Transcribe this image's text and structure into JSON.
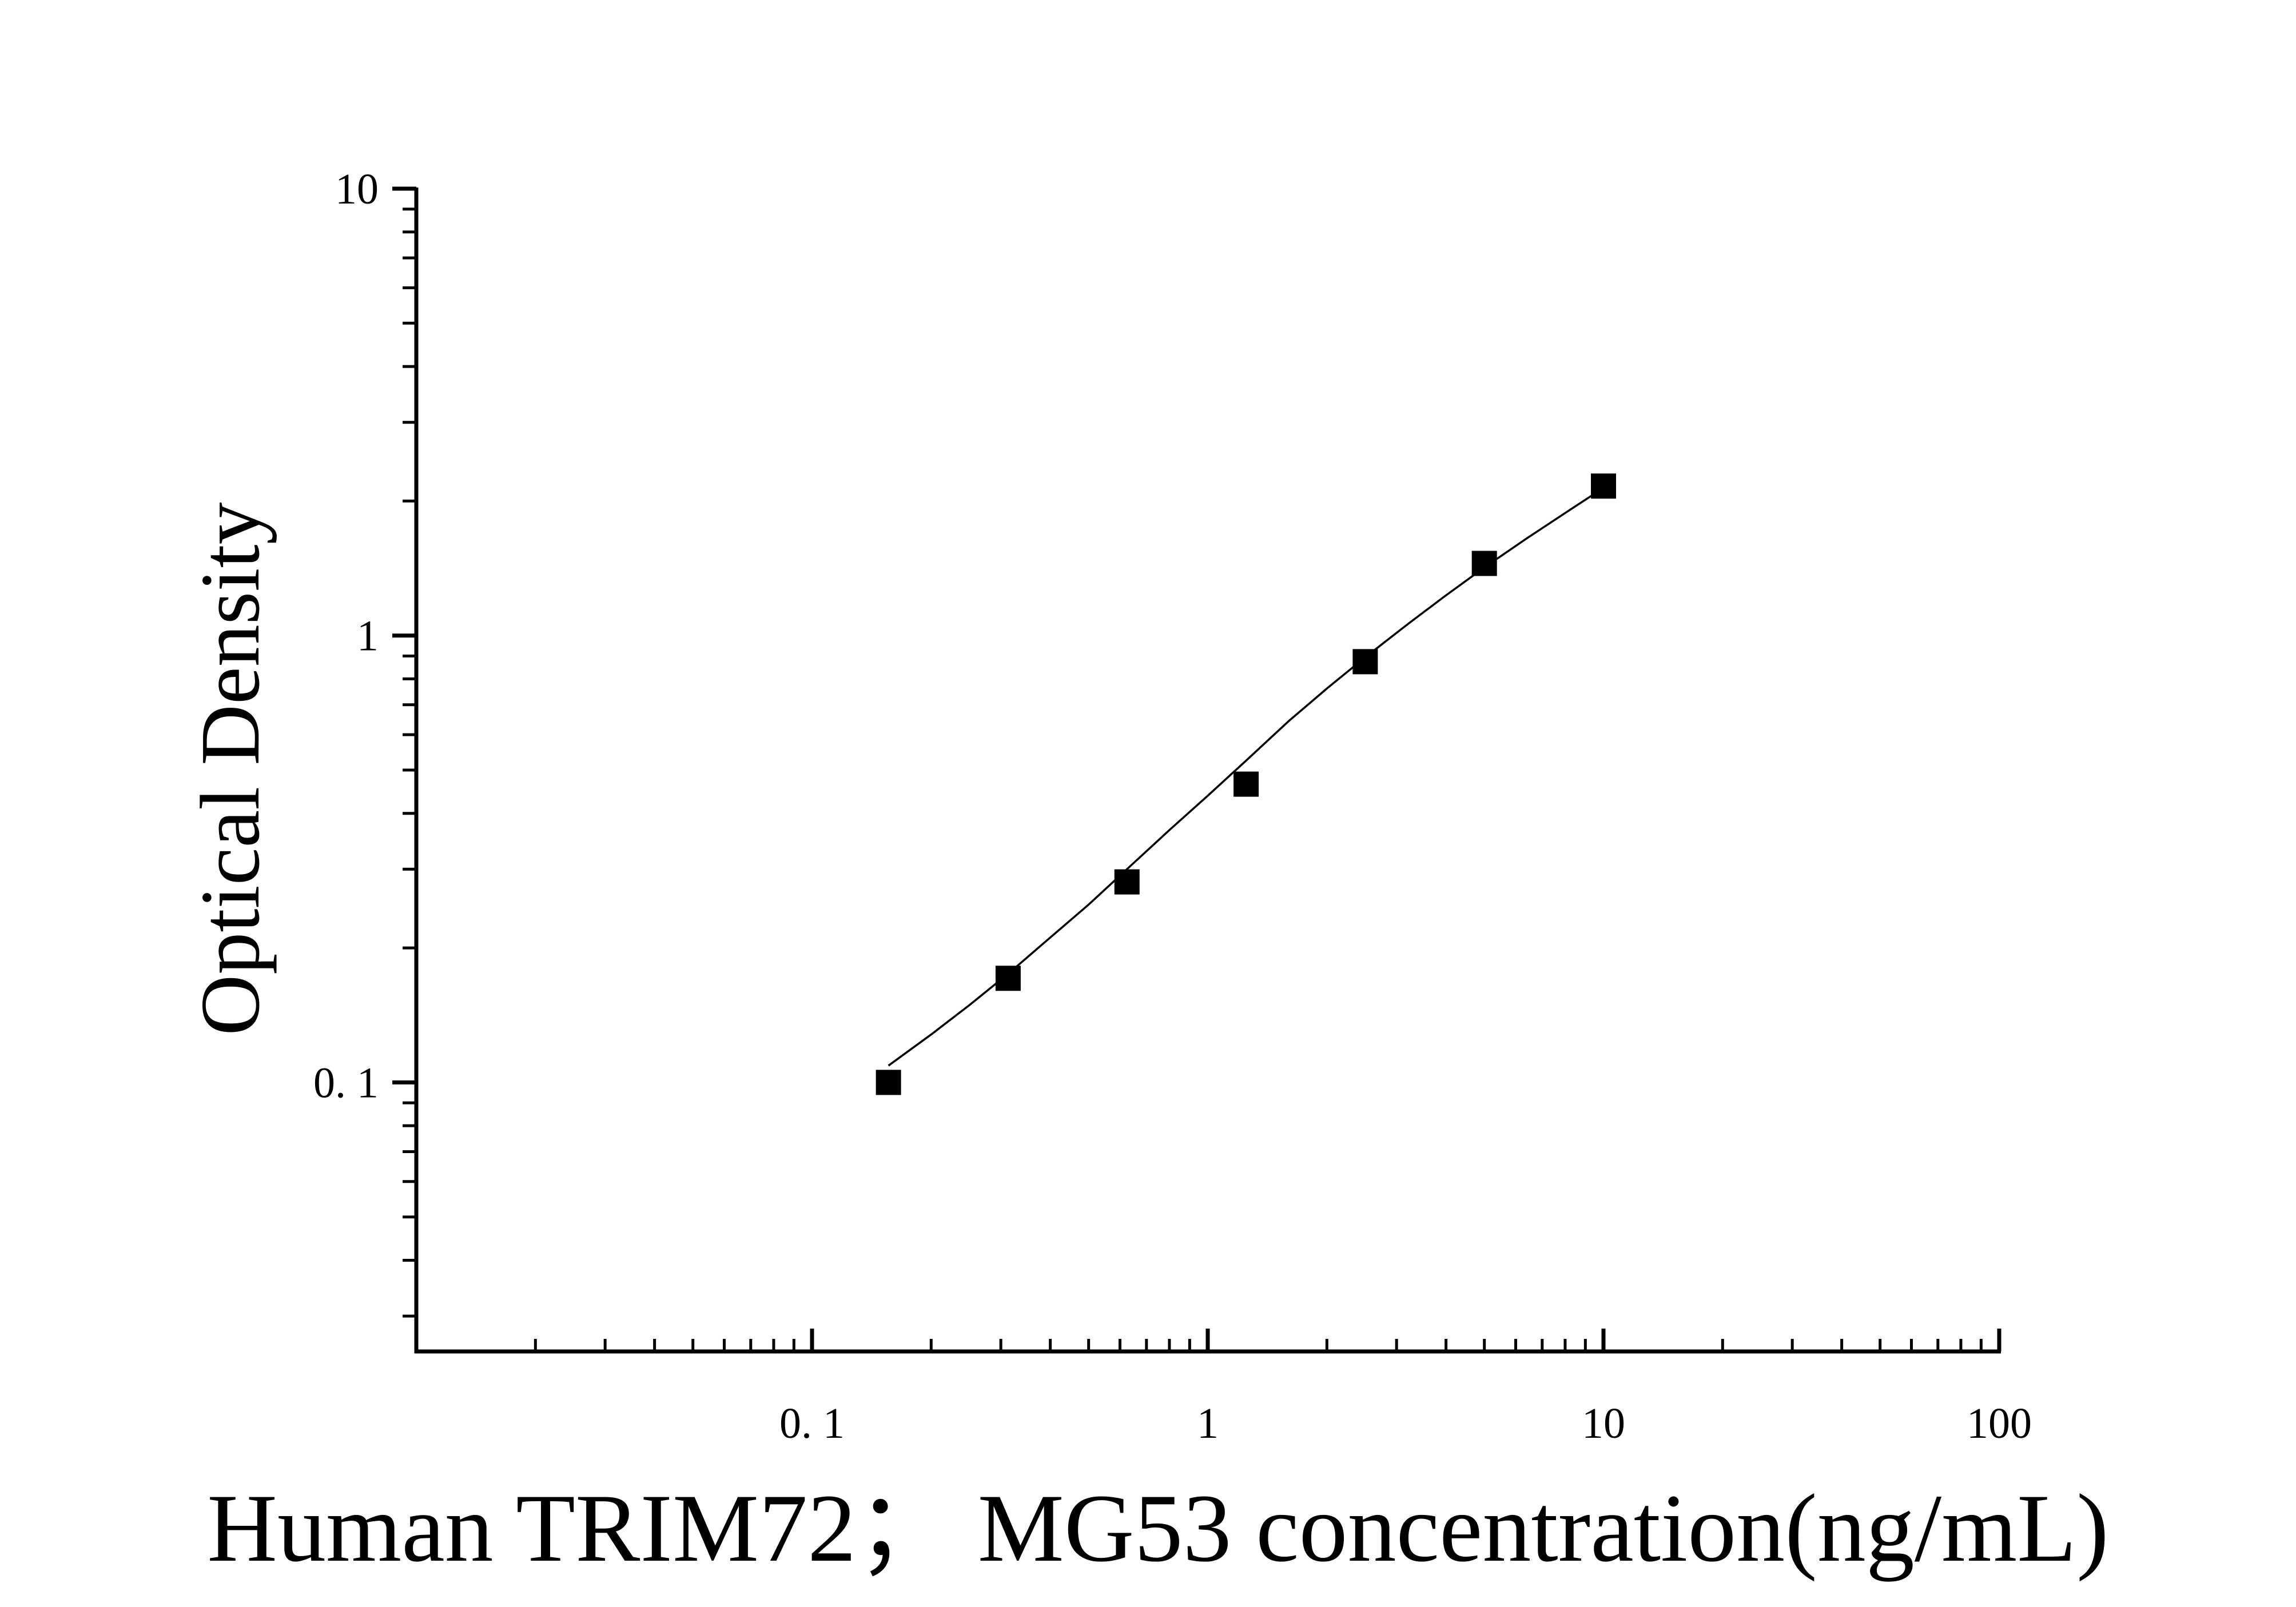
{
  "chart_data": {
    "type": "scatter",
    "title": "",
    "xlabel": "Human TRIM72；  MG53 concentration(ng/mL)",
    "ylabel": "Optical Density",
    "xscale": "log",
    "yscale": "log",
    "xlim": [
      0.01,
      100
    ],
    "ylim": [
      0.025,
      10
    ],
    "x_tick_labels": [
      "0. 1",
      "1",
      "10",
      "100"
    ],
    "y_tick_labels": [
      "0. 1",
      "1",
      "10"
    ],
    "grid": false,
    "legend": "none",
    "series": [
      {
        "marker": "square",
        "color": "#000000",
        "x": [
          0.156,
          0.313,
          0.625,
          1.25,
          2.5,
          5,
          10
        ],
        "y": [
          0.1,
          0.171,
          0.281,
          0.465,
          0.874,
          1.45,
          2.16
        ]
      }
    ],
    "fit_curve": {
      "type": "4PL",
      "color": "#000000",
      "x": [
        0.156,
        0.2,
        0.25,
        0.313,
        0.4,
        0.5,
        0.625,
        0.8,
        1.0,
        1.25,
        1.6,
        2.0,
        2.5,
        3.2,
        4.0,
        5.0,
        6.4,
        8.0,
        10.0
      ],
      "y": [
        0.109,
        0.128,
        0.149,
        0.175,
        0.211,
        0.25,
        0.3,
        0.367,
        0.438,
        0.525,
        0.643,
        0.761,
        0.894,
        1.06,
        1.23,
        1.42,
        1.65,
        1.88,
        2.14
      ]
    }
  }
}
